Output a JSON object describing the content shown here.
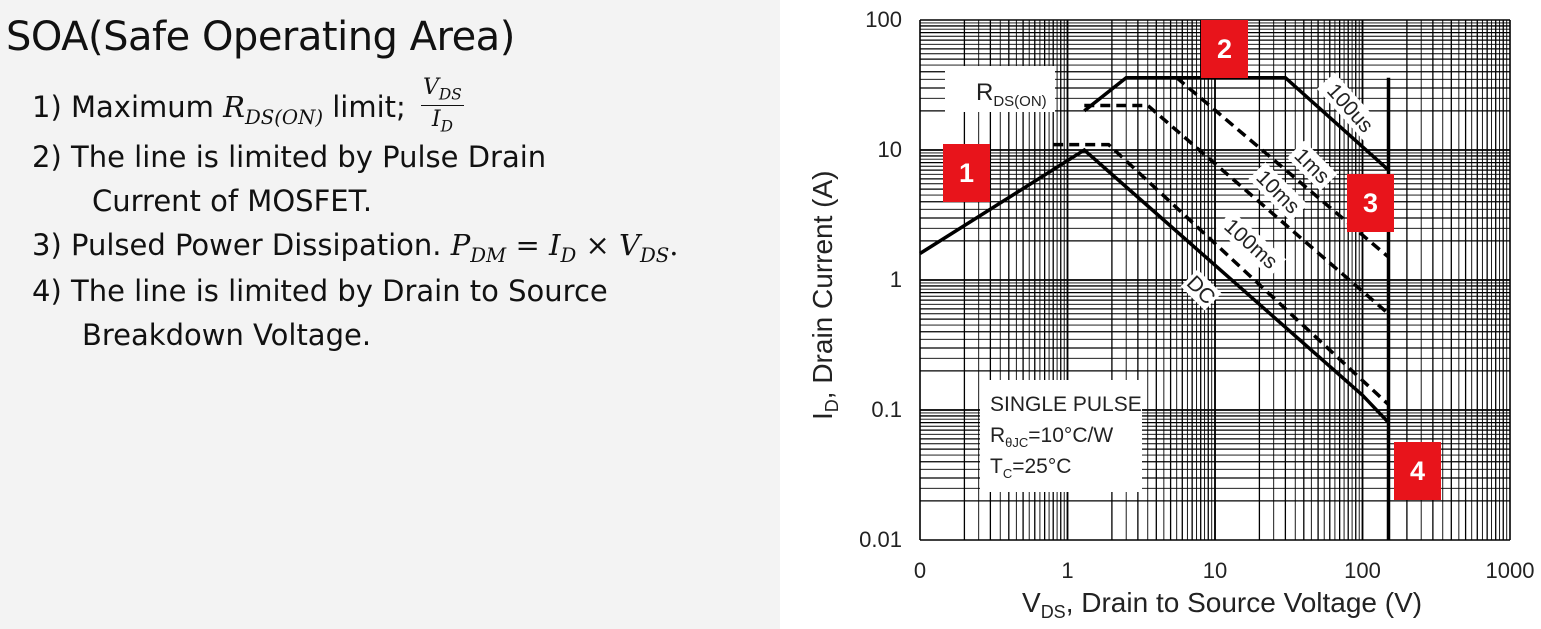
{
  "slide": {
    "title": "SOA(Safe Operating Area)",
    "items": [
      {
        "num": "1)",
        "text": "Maximum",
        "math_var": "R",
        "math_sub": "DS(ON)",
        "after": "limit;",
        "frac_num": "V",
        "frac_num_sub": "DS",
        "frac_den": "I",
        "frac_den_sub": "D"
      },
      {
        "num": "2)",
        "text": "The line is limited by Pulse Drain",
        "cont": "Current of MOSFET."
      },
      {
        "num": "3)",
        "text": "Pulsed Power Dissipation.",
        "eq_lhs": "P",
        "eq_lhs_sub": "DM",
        "eq_op1": "=",
        "eq_a": "I",
        "eq_a_sub": "D",
        "eq_op2": "×",
        "eq_b": "V",
        "eq_b_sub": "DS",
        "eq_end": "."
      },
      {
        "num": "4)",
        "text": "The line is limited by Drain to Source",
        "cont": "Breakdown Voltage."
      }
    ]
  },
  "chart_data": {
    "type": "line",
    "x_scale": "log",
    "y_scale": "log",
    "xlim": [
      0.1,
      1000
    ],
    "ylim": [
      0.01,
      100
    ],
    "x_tick_labels": [
      "0",
      "1",
      "10",
      "100",
      "1000"
    ],
    "y_tick_labels": [
      "100",
      "10",
      "1",
      "0.1",
      "0.01"
    ],
    "xlabel_main": "V",
    "xlabel_sub": "DS",
    "xlabel_rest": ", Drain to Source Voltage (V)",
    "ylabel_main": "I",
    "ylabel_sub": "D",
    "ylabel_rest": ", Drain Current (A)",
    "grid": true,
    "series": [
      {
        "name": "R_DS(ON) / DC",
        "style": "solid",
        "x": [
          0.1,
          1.3,
          100,
          150
        ],
        "y": [
          1.6,
          10,
          0.13,
          0.08
        ]
      },
      {
        "name": "100ms",
        "style": "dashed",
        "x": [
          0.8,
          1.9,
          150
        ],
        "y": [
          11,
          11,
          0.11
        ]
      },
      {
        "name": "10ms",
        "style": "dashed",
        "x": [
          1.3,
          3.5,
          150
        ],
        "y": [
          22,
          22,
          0.55
        ]
      },
      {
        "name": "1ms",
        "style": "dashed",
        "x": [
          5.5,
          150
        ],
        "y": [
          36,
          1.5
        ]
      },
      {
        "name": "100us",
        "style": "solid",
        "x": [
          1.3,
          2.5,
          30,
          150
        ],
        "y": [
          20,
          36,
          36,
          7
        ]
      },
      {
        "name": "Breakdown",
        "style": "solid",
        "x": [
          150,
          150
        ],
        "y": [
          36,
          0.01
        ]
      }
    ],
    "annotations": {
      "rdson_label": "R",
      "rdson_sub": "DS(ON)",
      "label_100us": "100us",
      "label_1ms": "1ms",
      "label_10ms": "10ms",
      "label_100ms": "100ms",
      "label_dc": "DC",
      "pulse_line1": "SINGLE PULSE",
      "pulse_line2_main": "R",
      "pulse_line2_sub": "θJC",
      "pulse_line2_rest": "=10°C/W",
      "pulse_line3_main": "T",
      "pulse_line3_sub": "C",
      "pulse_line3_rest": "=25°C",
      "markers": [
        "1",
        "2",
        "3",
        "4"
      ]
    },
    "marker_color": "#e8141b"
  }
}
